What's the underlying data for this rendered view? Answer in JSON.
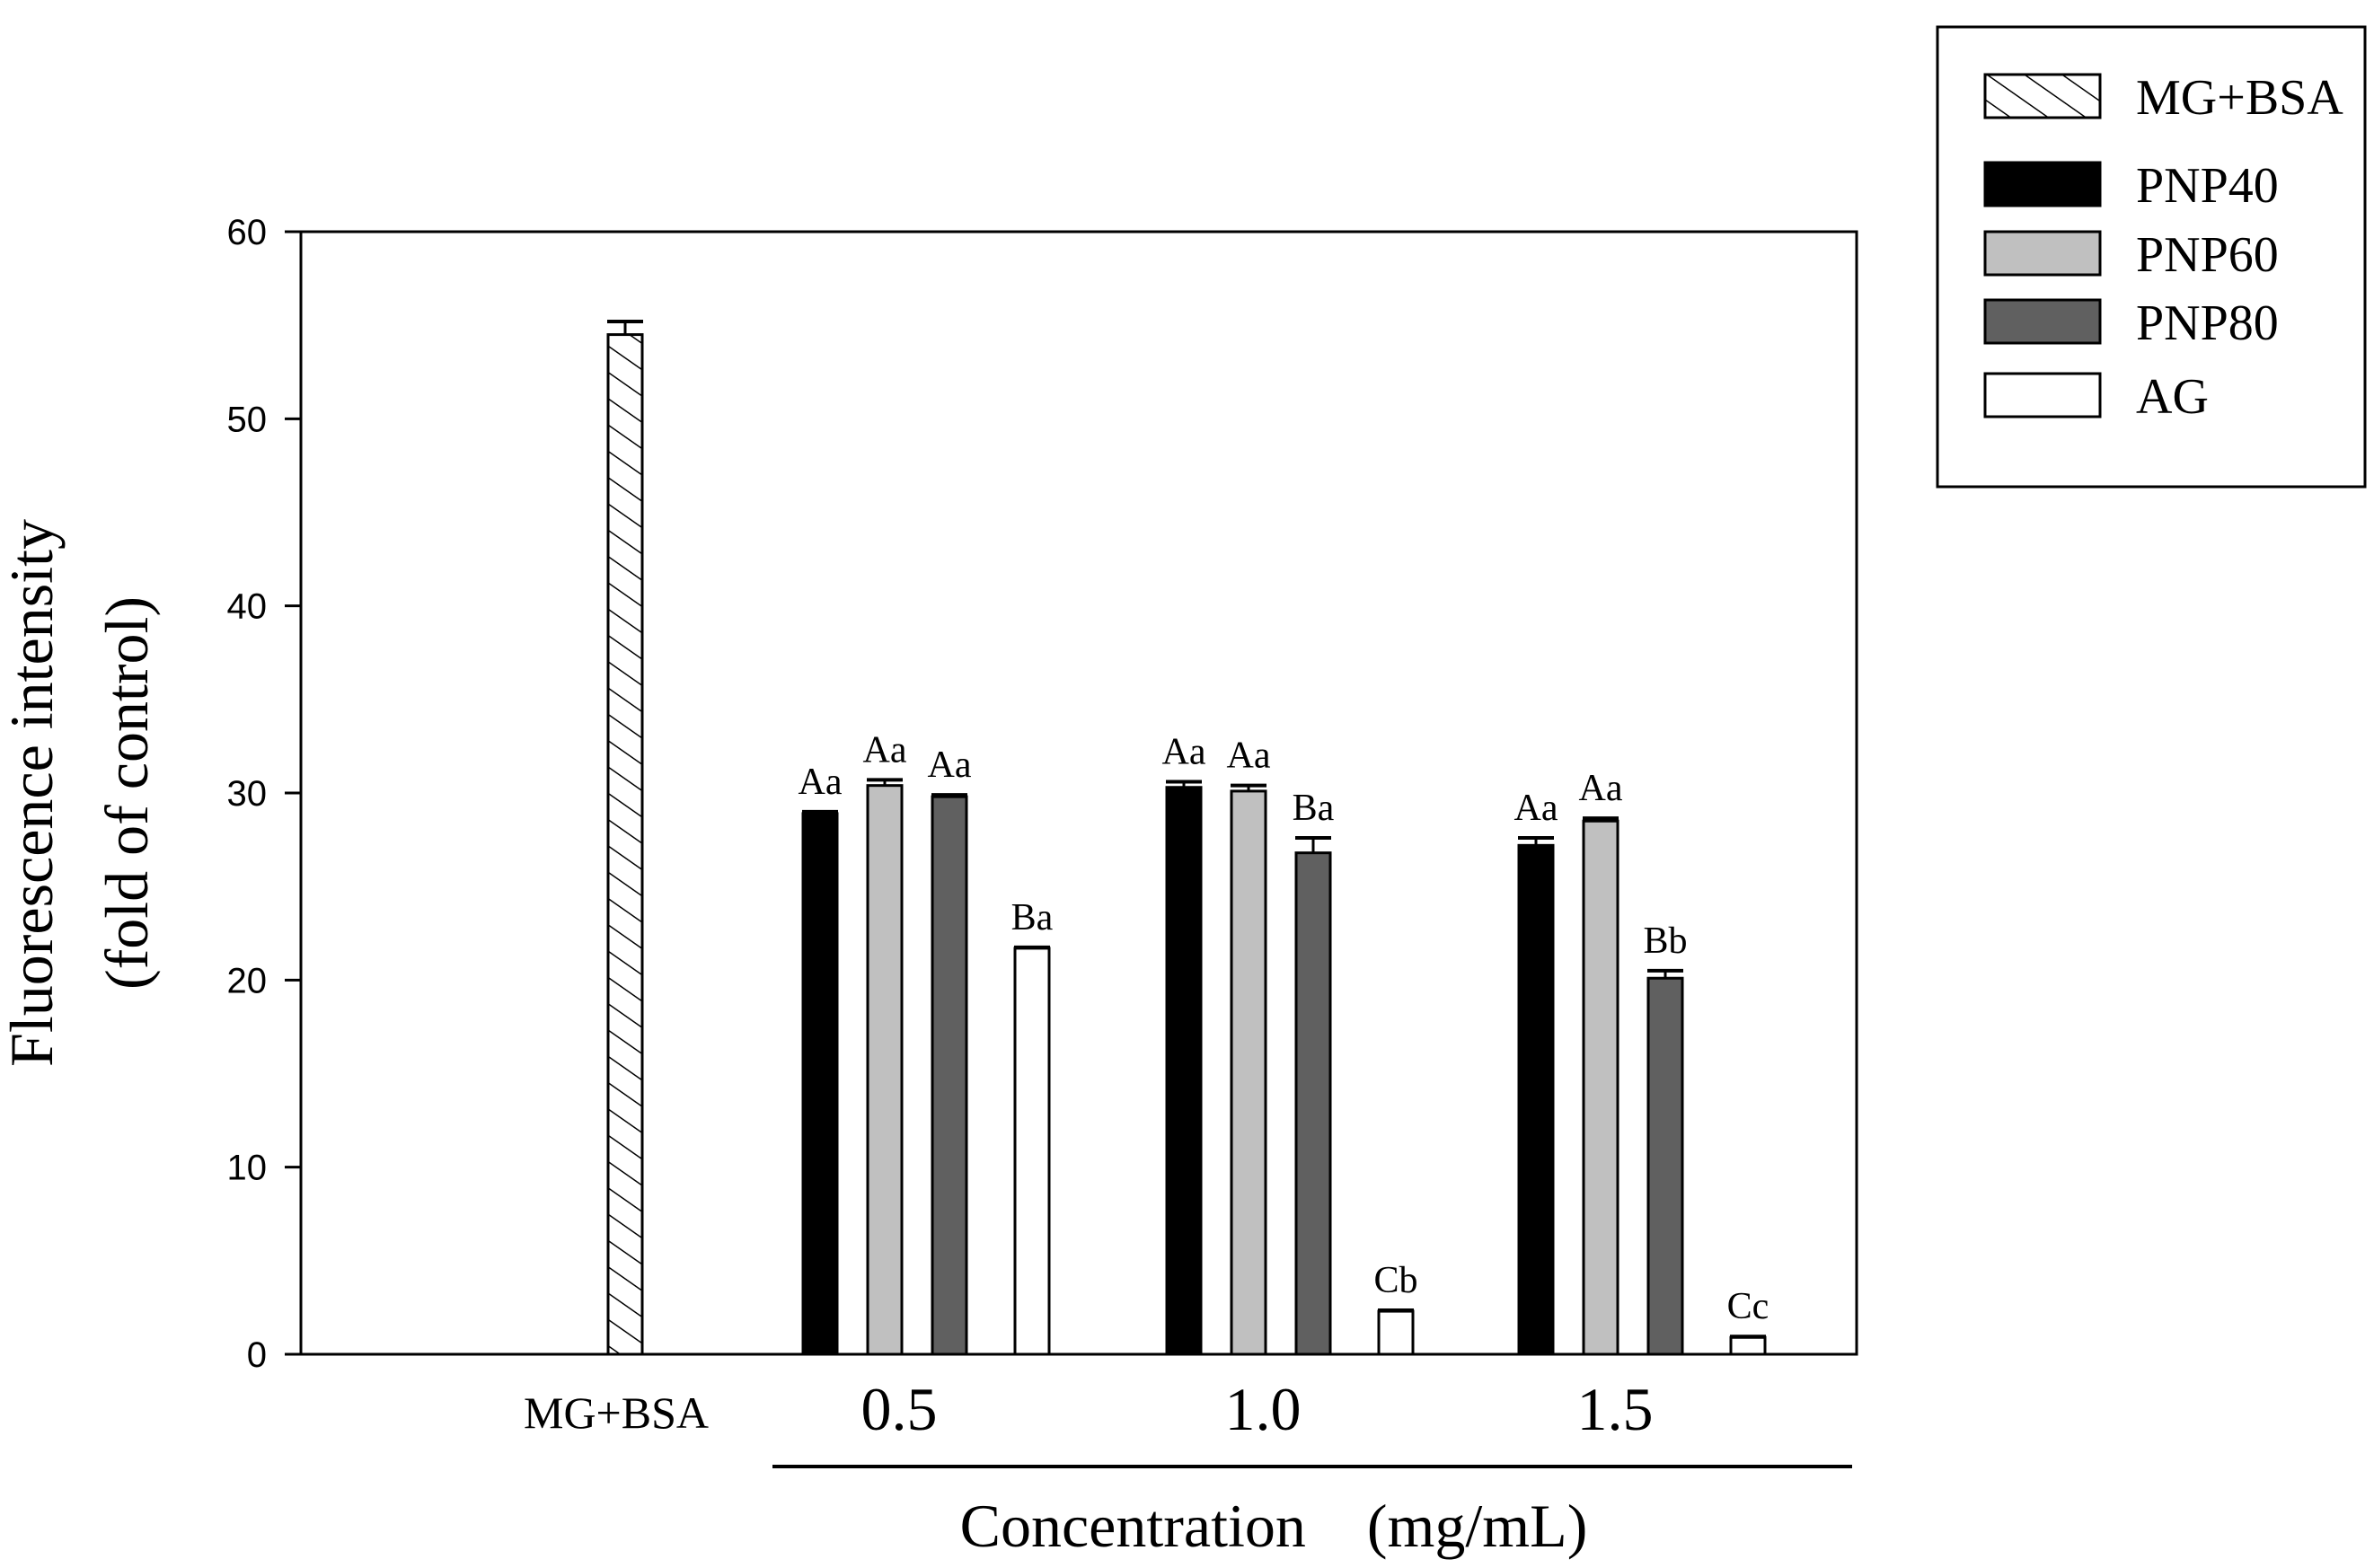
{
  "chart_data": {
    "type": "bar",
    "title": "",
    "ylabel_line1": "Fluorescence intensity",
    "ylabel_line2": "(fold of control)",
    "xlabel": "Concentration　(mg/mL)",
    "ylim": [
      0,
      60
    ],
    "yticks": [
      "0",
      "10",
      "20",
      "30",
      "40",
      "50",
      "60"
    ],
    "grid": false,
    "legend_position": "top-right",
    "control": {
      "name": "MG+BSA",
      "label": "MG+BSA",
      "value": 54.5,
      "error": 0.7
    },
    "categories": [
      "0.5",
      "1.0",
      "1.5"
    ],
    "series": [
      {
        "name": "PNP40",
        "values": [
          28.9,
          30.3,
          27.2
        ],
        "errors": [
          0.1,
          0.3,
          0.4
        ],
        "letters": [
          "Aa",
          "Aa",
          "Aa"
        ]
      },
      {
        "name": "PNP60",
        "values": [
          30.4,
          30.1,
          28.5
        ],
        "errors": [
          0.3,
          0.3,
          0.15
        ],
        "letters": [
          "Aa",
          "Aa",
          "Aa"
        ]
      },
      {
        "name": "PNP80",
        "values": [
          29.8,
          26.8,
          20.1
        ],
        "errors": [
          0.1,
          0.8,
          0.4
        ],
        "letters": [
          "Aa",
          "Ba",
          "Bb"
        ]
      },
      {
        "name": "AG",
        "values": [
          21.7,
          2.3,
          0.9
        ],
        "errors": [
          0.05,
          0.05,
          0.05
        ],
        "letters": [
          "Ba",
          "Cb",
          "Cc"
        ]
      }
    ],
    "legend": [
      "MG+BSA",
      "PNP40",
      "PNP60",
      "PNP80",
      "AG"
    ],
    "colors": {
      "PNP40": "#000000",
      "PNP60": "#c0c0c0",
      "PNP80": "#606060",
      "AG": "#ffffff",
      "axis": "#000000"
    }
  }
}
